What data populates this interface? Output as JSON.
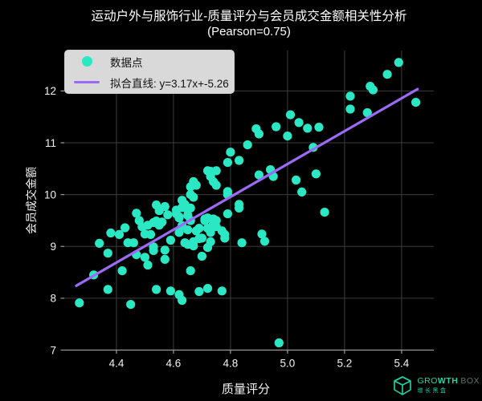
{
  "title": {
    "line1": "运动户外与服饰行业-质量评分与会员成交金额相关性分析",
    "line2": "(Pearson=0.75)"
  },
  "legend": {
    "scatter_label": "数据点",
    "line_label": "拟合直线: y=3.17x+-5.26"
  },
  "watermark": {
    "brand_part1": "GRO",
    "brand_part2": "WTH",
    "brand_part3": "BOX",
    "subtext": "增长黑盒",
    "accent": "#1FD6A8",
    "muted": "#5E7570"
  },
  "chart_data": {
    "type": "scatter",
    "title": "运动户外与服饰行业-质量评分与会员成交金额相关性分析 (Pearson=0.75)",
    "xlabel": "质量评分",
    "ylabel": "会员成交金额",
    "pearson": 0.75,
    "xlim": [
      4.217,
      5.513
    ],
    "ylim": [
      7.0,
      12.78
    ],
    "xticks": [
      4.4,
      4.6,
      4.8,
      5.0,
      5.2,
      5.4
    ],
    "xtick_labels": [
      "4.4",
      "4.6",
      "4.8",
      "5.0",
      "5.2",
      "5.4"
    ],
    "yticks": [
      7,
      8,
      9,
      10,
      11,
      12
    ],
    "ytick_labels": [
      "7",
      "8",
      "9",
      "10",
      "11",
      "12"
    ],
    "grid": true,
    "legend_position": "upper left",
    "fit_line": {
      "slope": 3.17,
      "intercept": -5.26,
      "x_start": 4.259,
      "x_end": 5.456
    },
    "colors": {
      "point": "#2BE8C4",
      "line": "#9B6BF5",
      "grid": "#3d3d3d",
      "axis": "#9c9c9c",
      "text": "#f2f2f2",
      "legend_bg": "#d9d9d9",
      "legend_text": "#121212",
      "background": "#000000"
    },
    "points": [
      [
        5.39,
        12.55
      ],
      [
        5.35,
        12.32
      ],
      [
        5.29,
        12.09
      ],
      [
        5.3,
        12.02
      ],
      [
        5.22,
        11.9
      ],
      [
        5.45,
        11.78
      ],
      [
        5.22,
        11.65
      ],
      [
        5.28,
        11.58
      ],
      [
        5.01,
        11.54
      ],
      [
        5.04,
        11.39
      ],
      [
        4.96,
        11.31
      ],
      [
        4.89,
        11.27
      ],
      [
        4.9,
        11.17
      ],
      [
        5.0,
        11.13
      ],
      [
        5.07,
        11.28
      ],
      [
        5.11,
        11.3
      ],
      [
        5.09,
        10.91
      ],
      [
        4.86,
        10.96
      ],
      [
        4.8,
        10.82
      ],
      [
        4.83,
        10.66
      ],
      [
        4.79,
        10.62
      ],
      [
        4.72,
        10.46
      ],
      [
        4.73,
        10.45
      ],
      [
        4.75,
        10.46
      ],
      [
        4.73,
        10.35
      ],
      [
        4.74,
        10.25
      ],
      [
        4.75,
        10.18
      ],
      [
        4.67,
        10.25
      ],
      [
        4.68,
        10.18
      ],
      [
        4.66,
        10.15
      ],
      [
        4.79,
        10.06
      ],
      [
        4.79,
        10.0
      ],
      [
        4.94,
        10.48
      ],
      [
        4.95,
        10.35
      ],
      [
        4.9,
        10.38
      ],
      [
        5.1,
        10.4
      ],
      [
        5.03,
        10.28
      ],
      [
        5.05,
        10.05
      ],
      [
        5.13,
        9.66
      ],
      [
        4.91,
        9.24
      ],
      [
        4.92,
        9.1
      ],
      [
        4.97,
        7.14
      ],
      [
        4.66,
        10.0
      ],
      [
        4.67,
        9.95
      ],
      [
        4.64,
        9.81
      ],
      [
        4.66,
        9.74
      ],
      [
        4.27,
        7.91
      ],
      [
        4.34,
        9.06
      ],
      [
        4.32,
        8.45
      ],
      [
        4.37,
        8.87
      ],
      [
        4.37,
        8.17
      ],
      [
        4.38,
        9.26
      ],
      [
        4.41,
        9.23
      ],
      [
        4.43,
        9.36
      ],
      [
        4.44,
        9.07
      ],
      [
        4.46,
        9.07
      ],
      [
        4.45,
        7.88
      ],
      [
        4.42,
        8.53
      ],
      [
        4.47,
        9.64
      ],
      [
        4.48,
        9.5
      ],
      [
        4.49,
        9.38
      ],
      [
        4.47,
        8.84
      ],
      [
        4.5,
        9.24
      ],
      [
        4.51,
        9.41
      ],
      [
        4.53,
        9.46
      ],
      [
        4.54,
        9.8
      ],
      [
        4.55,
        9.69
      ],
      [
        4.57,
        9.77
      ],
      [
        4.58,
        9.61
      ],
      [
        4.54,
        9.49
      ],
      [
        4.55,
        9.41
      ],
      [
        4.56,
        9.47
      ],
      [
        4.52,
        9.23
      ],
      [
        4.53,
        8.99
      ],
      [
        4.53,
        8.92
      ],
      [
        4.5,
        8.79
      ],
      [
        4.51,
        8.64
      ],
      [
        4.54,
        8.17
      ],
      [
        4.59,
        8.14
      ],
      [
        4.61,
        9.7
      ],
      [
        4.62,
        9.57
      ],
      [
        4.63,
        9.89
      ],
      [
        4.63,
        9.75
      ],
      [
        4.65,
        9.7
      ],
      [
        4.62,
        9.27
      ],
      [
        4.64,
        9.07
      ],
      [
        4.57,
        8.93
      ],
      [
        4.57,
        8.75
      ],
      [
        4.62,
        8.07
      ],
      [
        4.63,
        7.96
      ],
      [
        4.65,
        9.04
      ],
      [
        4.67,
        9.01
      ],
      [
        4.68,
        9.3
      ],
      [
        4.69,
        9.15
      ],
      [
        4.7,
        8.81
      ],
      [
        4.66,
        8.53
      ],
      [
        4.71,
        9.5
      ],
      [
        4.72,
        9.55
      ],
      [
        4.74,
        9.43
      ],
      [
        4.73,
        9.27
      ],
      [
        4.73,
        9.09
      ],
      [
        4.75,
        9.5
      ],
      [
        4.77,
        9.3
      ],
      [
        4.78,
        9.23
      ],
      [
        4.79,
        9.63
      ],
      [
        4.77,
        8.14
      ],
      [
        4.72,
        8.19
      ],
      [
        4.69,
        8.13
      ],
      [
        4.83,
        9.74
      ],
      [
        4.83,
        9.81
      ],
      [
        4.84,
        9.07
      ],
      [
        4.59,
        9.12
      ],
      [
        4.63,
        9.4
      ],
      [
        4.65,
        9.32
      ],
      [
        4.66,
        9.5
      ],
      [
        4.65,
        9.6
      ],
      [
        4.62,
        9.55
      ],
      [
        4.61,
        9.63
      ],
      [
        4.69,
        9.35
      ],
      [
        4.71,
        9.53
      ],
      [
        4.74,
        9.53
      ],
      [
        4.75,
        9.38
      ],
      [
        4.72,
        9.35
      ],
      [
        4.78,
        9.16
      ],
      [
        4.7,
        9.16
      ],
      [
        4.67,
        9.09
      ],
      [
        4.72,
        8.98
      ]
    ]
  }
}
